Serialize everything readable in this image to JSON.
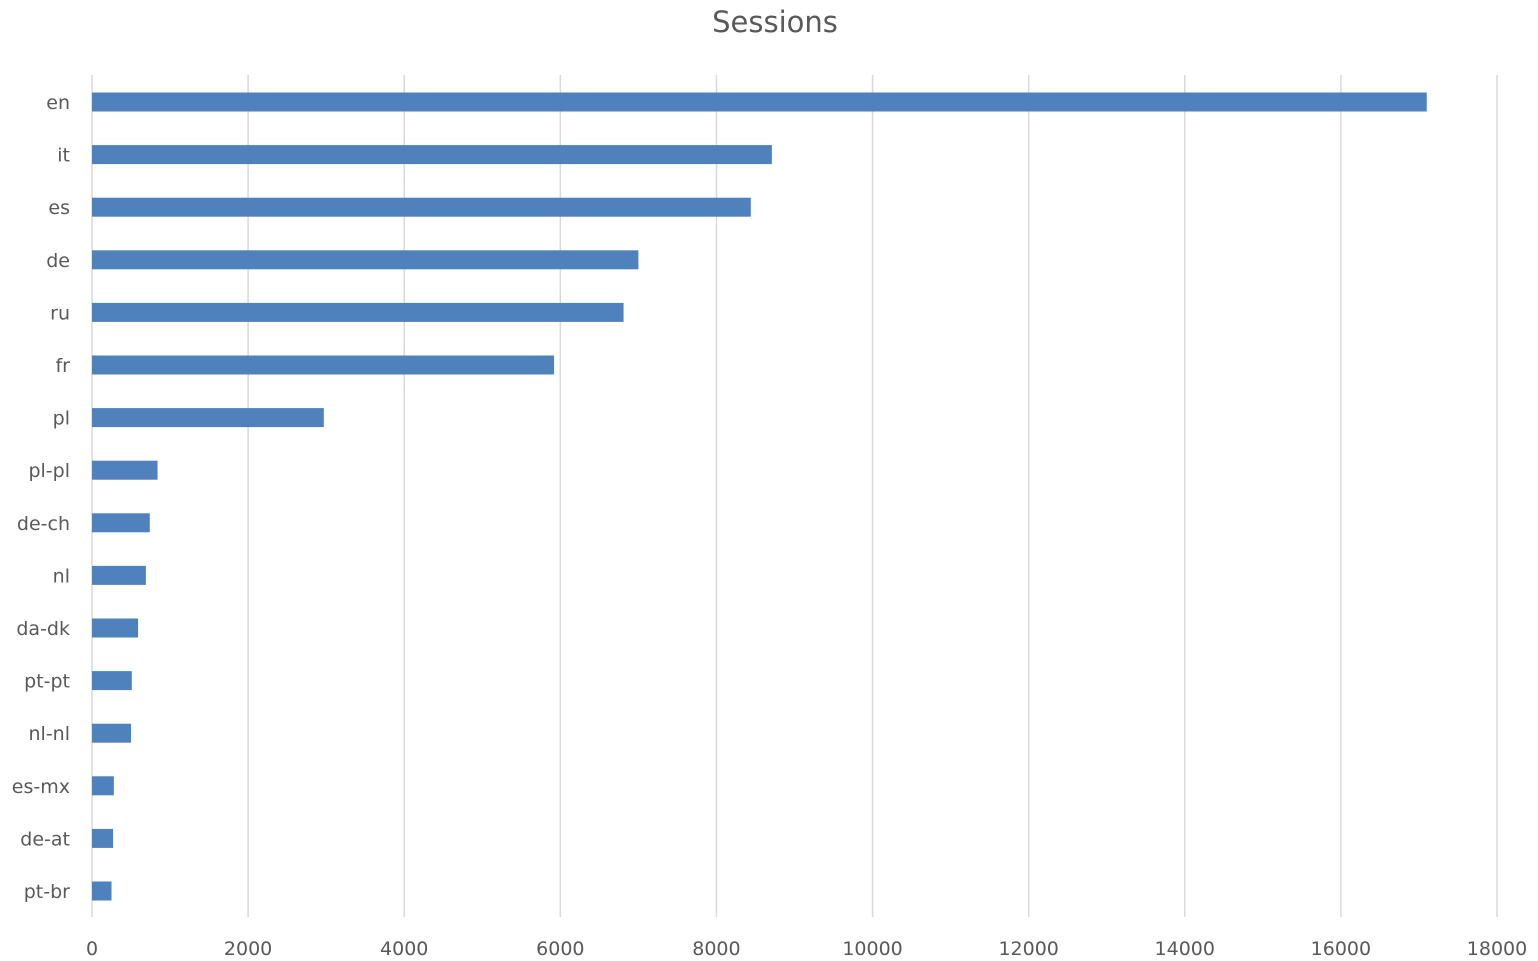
{
  "chart_data": {
    "type": "bar",
    "orientation": "horizontal",
    "title": "Sessions",
    "xlabel": "",
    "ylabel": "",
    "categories": [
      "en",
      "it",
      "es",
      "de",
      "ru",
      "fr",
      "pl",
      "pl-pl",
      "de-ch",
      "nl",
      "da-dk",
      "pt-pt",
      "nl-nl",
      "es-mx",
      "de-at",
      "pt-br"
    ],
    "values": [
      17100,
      8710,
      8440,
      7000,
      6810,
      5920,
      2970,
      840,
      740,
      690,
      590,
      510,
      500,
      280,
      270,
      250
    ],
    "xlim": [
      0,
      18000
    ],
    "xticks": [
      "0",
      "2000",
      "4000",
      "6000",
      "8000",
      "10000",
      "12000",
      "14000",
      "16000",
      "18000"
    ],
    "grid": "vertical",
    "legend": "none",
    "bar_color": "#4f81bd"
  }
}
